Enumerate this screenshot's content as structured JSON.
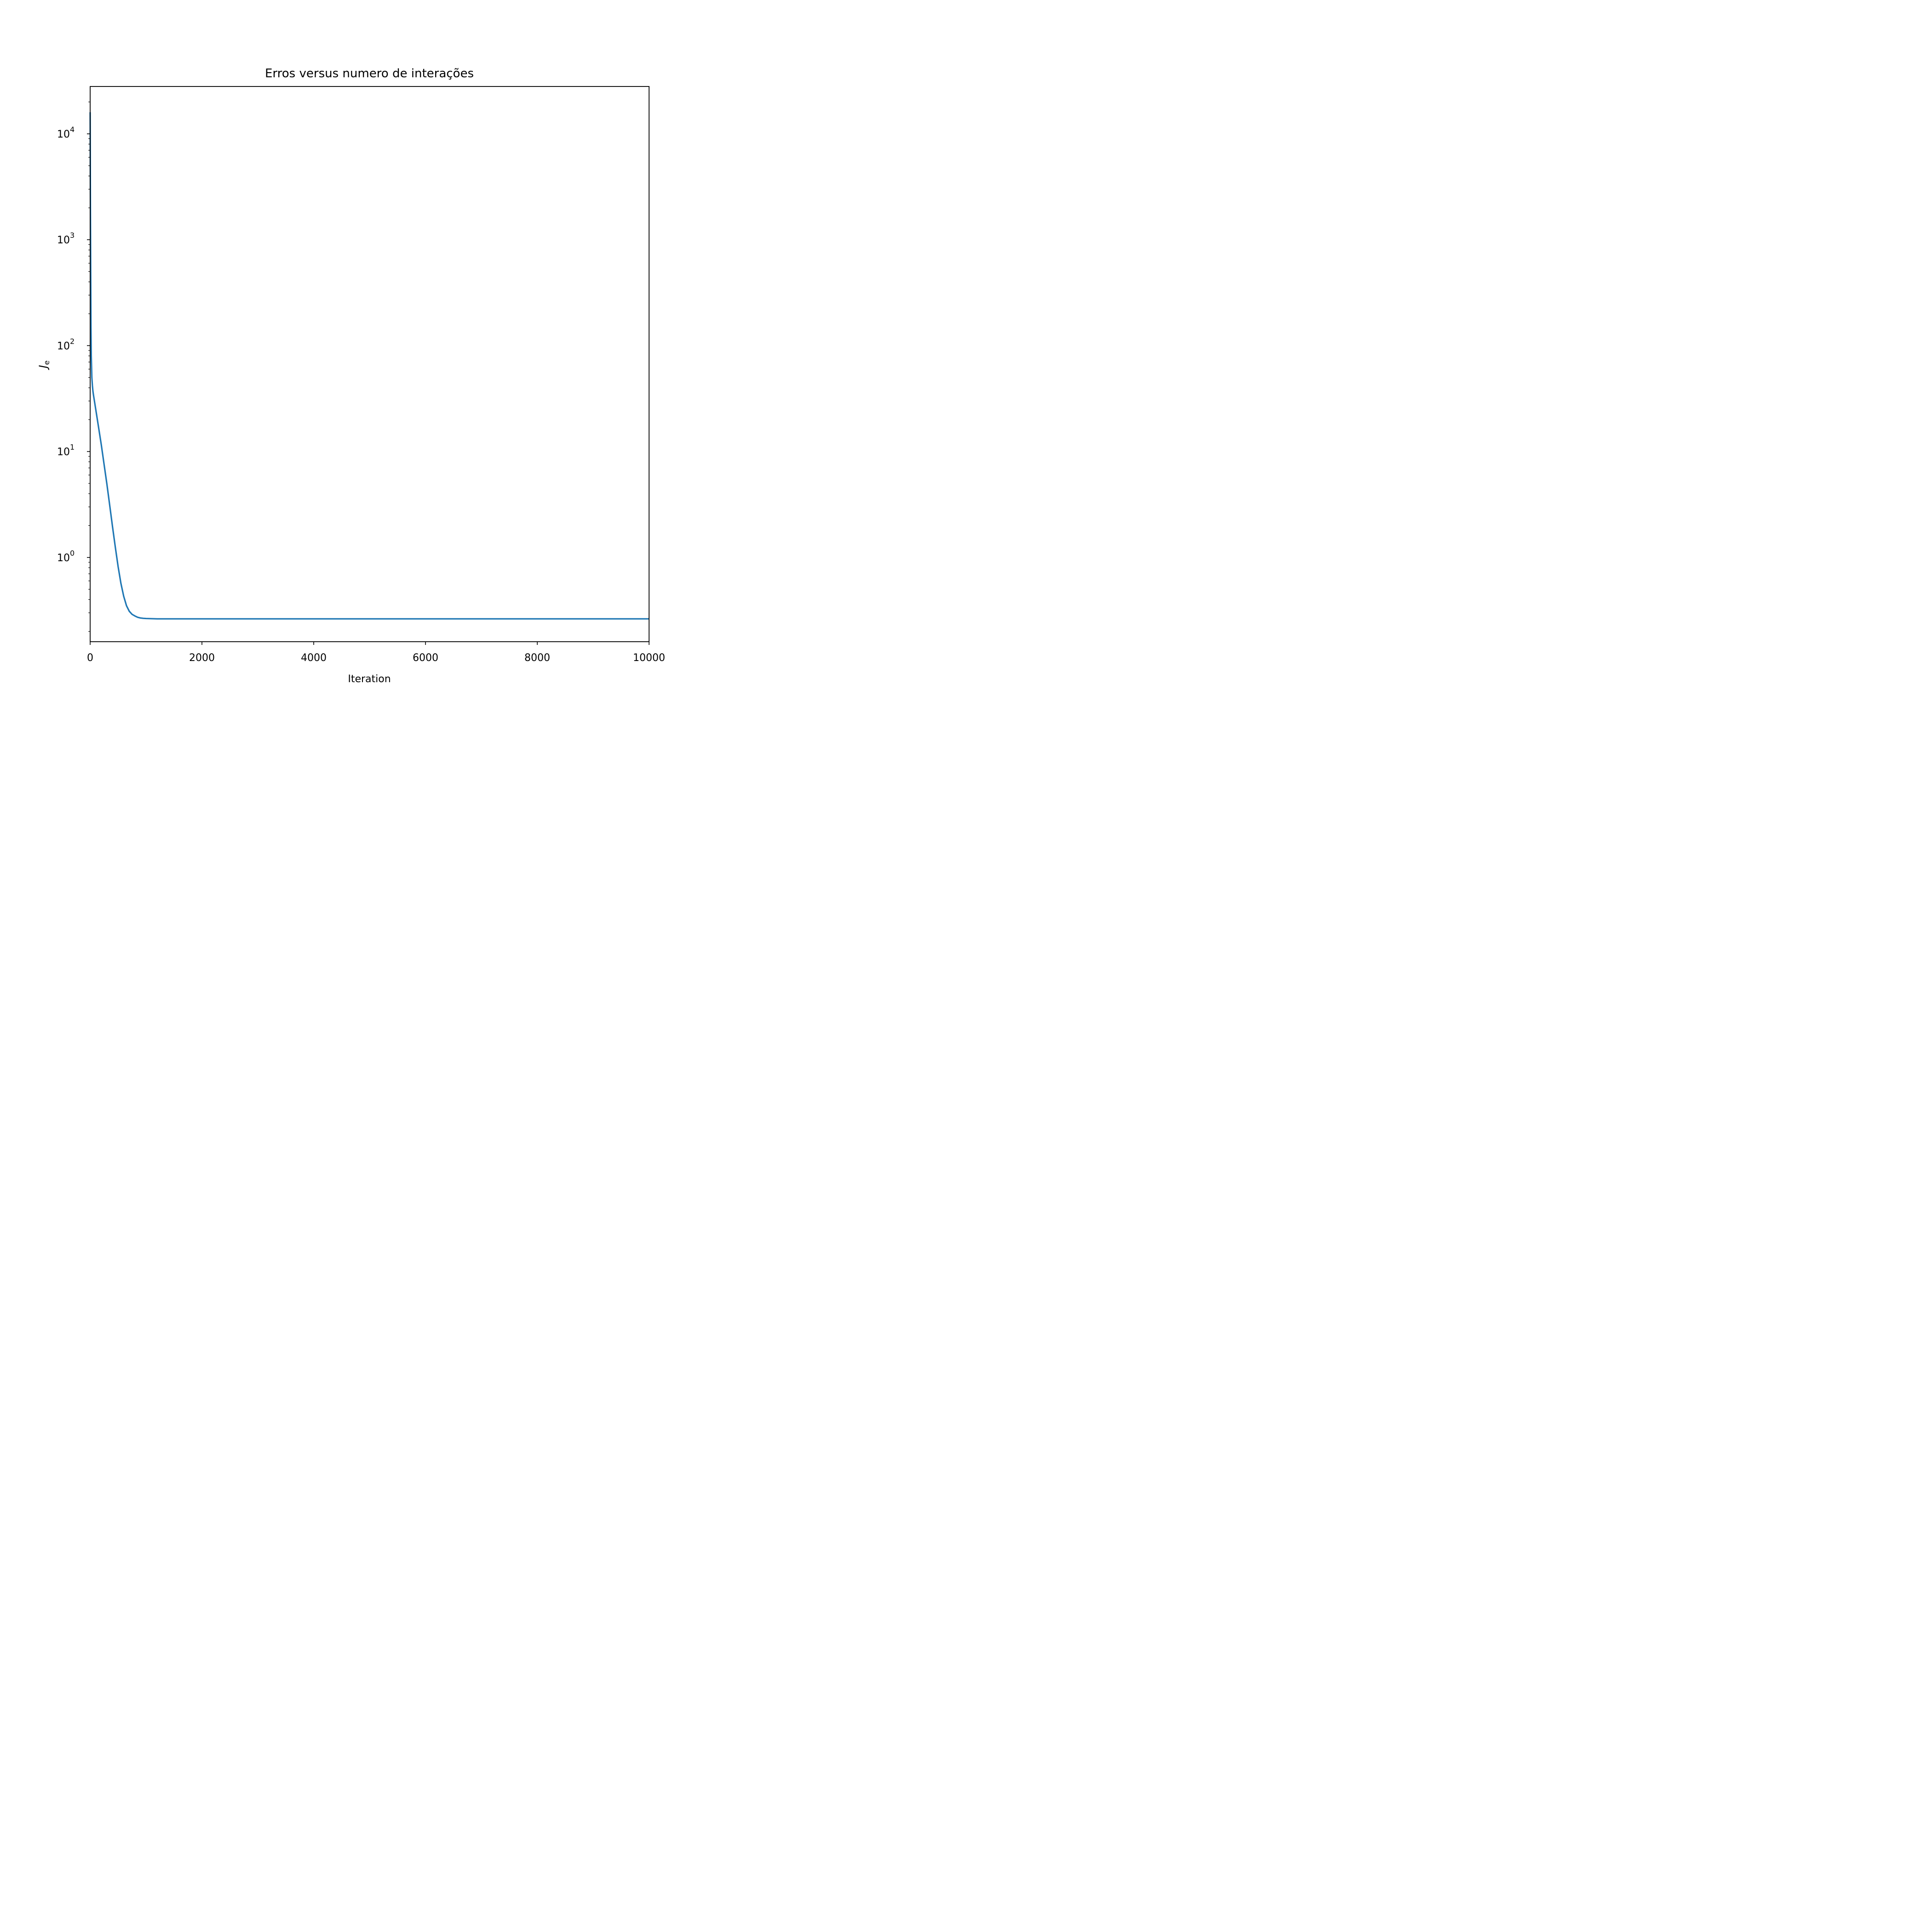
{
  "chart_data": {
    "type": "line",
    "title": "Erros versus numero de interações",
    "xlabel": "Iteration",
    "ylabel_main": "J",
    "ylabel_sub": "e",
    "xlim": [
      0,
      10000
    ],
    "ylim": [
      0.16,
      28000
    ],
    "yscale": "log",
    "grid": false,
    "x_ticks": [
      0,
      2000,
      4000,
      6000,
      8000,
      10000
    ],
    "x_tick_labels": [
      "0",
      "2000",
      "4000",
      "6000",
      "8000",
      "10000"
    ],
    "y_ticks": [
      1,
      10,
      100,
      1000,
      10000
    ],
    "y_tick_labels_base": [
      "10",
      "10",
      "10",
      "10",
      "10"
    ],
    "y_tick_labels_exp": [
      "0",
      "1",
      "2",
      "3",
      "4"
    ],
    "series": [
      {
        "color": "#1f77b4",
        "x": [
          0,
          5,
          10,
          15,
          20,
          30,
          40,
          50,
          60,
          100,
          150,
          200,
          250,
          300,
          350,
          400,
          450,
          500,
          550,
          600,
          650,
          700,
          750,
          800,
          850,
          900,
          950,
          1000,
          1100,
          1200,
          1500,
          2000,
          3000,
          4000,
          5000,
          6000,
          7000,
          8000,
          9000,
          10000
        ],
        "y": [
          16000,
          2000,
          500,
          150,
          80,
          50,
          42,
          37,
          34,
          25,
          17,
          11.5,
          7.5,
          4.9,
          3.1,
          1.95,
          1.25,
          0.82,
          0.57,
          0.43,
          0.35,
          0.31,
          0.29,
          0.28,
          0.272,
          0.268,
          0.266,
          0.265,
          0.264,
          0.263,
          0.263,
          0.263,
          0.263,
          0.263,
          0.263,
          0.263,
          0.263,
          0.263,
          0.263,
          0.263
        ]
      }
    ]
  }
}
